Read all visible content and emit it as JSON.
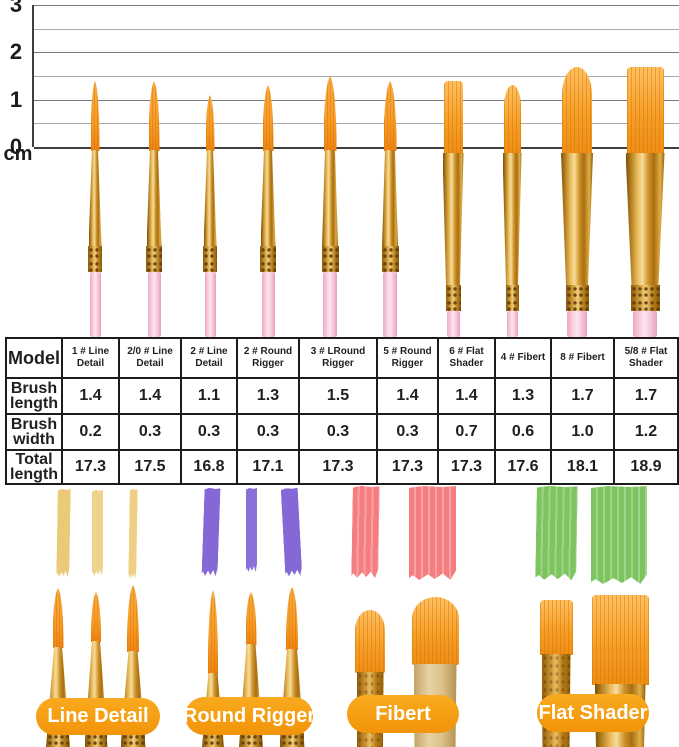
{
  "ruler": {
    "unit_label": "cm",
    "tick_labels": [
      "3",
      "2",
      "1",
      "0"
    ],
    "max_cm": 3,
    "min_cm": 0,
    "step_cm": 0.5
  },
  "table": {
    "row_headers": [
      "Model",
      "Brush length",
      "Brush width",
      "Total length"
    ],
    "models": [
      "1 # Line Detail",
      "2/0 # Line Detail",
      "2 # Line Detail",
      "2 # Round Rigger",
      "3 # LRound Rigger",
      "5 # Round Rigger",
      "6 # Flat Shader",
      "4 # Fibert",
      "8 # Fibert",
      "5/8 # Flat Shader"
    ],
    "brush_length": [
      "1.4",
      "1.4",
      "1.1",
      "1.3",
      "1.5",
      "1.4",
      "1.4",
      "1.3",
      "1.7",
      "1.7"
    ],
    "brush_width": [
      "0.2",
      "0.3",
      "0.3",
      "0.3",
      "0.3",
      "0.3",
      "0.7",
      "0.6",
      "1.0",
      "1.2"
    ],
    "total_length": [
      "17.3",
      "17.5",
      "16.8",
      "17.1",
      "17.3",
      "17.3",
      "17.3",
      "17.6",
      "18.1",
      "18.9"
    ]
  },
  "chart_data": {
    "type": "bar",
    "title": "",
    "xlabel": "",
    "ylabel": "cm",
    "ylim": [
      0,
      3
    ],
    "ytick_step": 0.5,
    "grid": true,
    "categories": [
      "1 # Line Detail",
      "2/0 # Line Detail",
      "2 # Line Detail",
      "2 # Round Rigger",
      "3 # LRound Rigger",
      "5 # Round Rigger",
      "6 # Flat Shader",
      "4 # Fibert",
      "8 # Fibert",
      "5/8 # Flat Shader"
    ],
    "series": [
      {
        "name": "Brush length (cm)",
        "values": [
          1.4,
          1.4,
          1.1,
          1.3,
          1.5,
          1.4,
          1.4,
          1.3,
          1.7,
          1.7
        ]
      },
      {
        "name": "Brush width (cm)",
        "values": [
          0.2,
          0.3,
          0.3,
          0.3,
          0.3,
          0.3,
          0.7,
          0.6,
          1.0,
          1.2
        ]
      },
      {
        "name": "Total length (cm)",
        "values": [
          17.3,
          17.5,
          16.8,
          17.1,
          17.3,
          17.3,
          17.3,
          17.6,
          18.1,
          18.9
        ]
      }
    ],
    "note": "Ten brushes drawn against a 0-3 cm ruler; bristle tip height shows brush length"
  },
  "groups": [
    {
      "label": "Line Detail"
    },
    {
      "label": "Round Rigger"
    },
    {
      "label": "Fibert"
    },
    {
      "label": "Flat Shader"
    }
  ],
  "colors": {
    "bristle_orange": "#F79B26",
    "ferrule_gold": "#C8861D",
    "handle_pink": "#F7CBDC",
    "pill_orange": "#F79F0D",
    "swatch_yellow": "#E8C468",
    "swatch_purple": "#8468D6",
    "swatch_red": "#F57D80",
    "swatch_green": "#7CC45E",
    "table_border": "#1C1C1C"
  }
}
